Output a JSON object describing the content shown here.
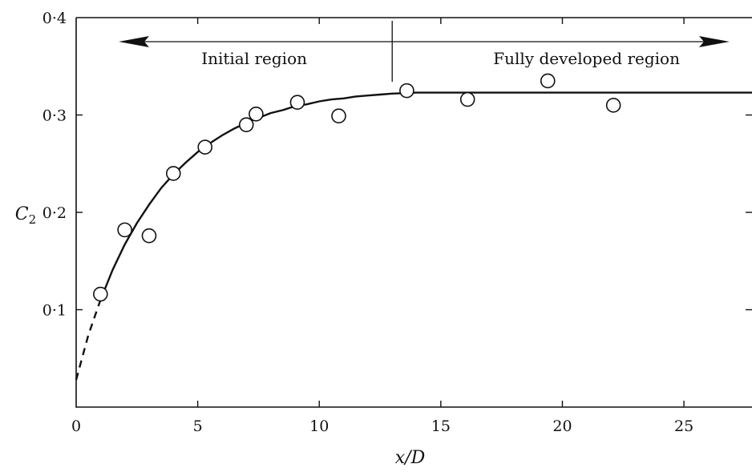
{
  "chart_data": {
    "type": "scatter",
    "title": "",
    "xlabel": "x/D",
    "ylabel": "C",
    "ylabel_sub": "2",
    "xlim": [
      0,
      27.8
    ],
    "ylim": [
      0.0,
      0.4
    ],
    "x_ticks": [
      0,
      5,
      10,
      15,
      20,
      25
    ],
    "x_tick_labels": [
      "0",
      "5",
      "10",
      "15",
      "20",
      "25"
    ],
    "y_ticks": [
      0.1,
      0.2,
      0.3,
      0.4
    ],
    "y_tick_labels": [
      "0·1",
      "0·2",
      "0·3",
      "0·4"
    ],
    "grid": false,
    "series": [
      {
        "marker": "open-circle",
        "x": [
          1.0,
          2.0,
          3.0,
          4.0,
          5.3,
          7.0,
          7.4,
          9.1,
          10.8,
          13.6,
          16.1,
          19.4,
          22.1
        ],
        "y": [
          0.116,
          0.182,
          0.176,
          0.24,
          0.267,
          0.29,
          0.301,
          0.313,
          0.299,
          0.325,
          0.316,
          0.335,
          0.31
        ]
      }
    ],
    "fit_curve": {
      "style": "solid",
      "dashed_segment_x": [
        0.0,
        1.0
      ],
      "x": [
        0,
        0.5,
        1.0,
        1.5,
        2.0,
        2.5,
        3.0,
        3.5,
        4.0,
        4.5,
        5.0,
        5.5,
        6.0,
        6.5,
        7.0,
        7.5,
        8.0,
        8.5,
        9.0,
        9.5,
        10.0,
        10.5,
        11.0,
        11.5,
        12.0,
        12.5,
        13.0,
        14.0,
        16.0,
        20.0,
        24.0,
        27.8
      ],
      "y": [
        0.028,
        0.074,
        0.11,
        0.141,
        0.167,
        0.189,
        0.208,
        0.225,
        0.239,
        0.251,
        0.262,
        0.271,
        0.279,
        0.286,
        0.292,
        0.297,
        0.302,
        0.305,
        0.309,
        0.311,
        0.314,
        0.316,
        0.317,
        0.319,
        0.32,
        0.321,
        0.322,
        0.323,
        0.323,
        0.323,
        0.323,
        0.323
      ]
    },
    "regions": {
      "boundary_x": 13.0,
      "left_label": "Initial region",
      "right_label": "Fully developed region"
    }
  }
}
